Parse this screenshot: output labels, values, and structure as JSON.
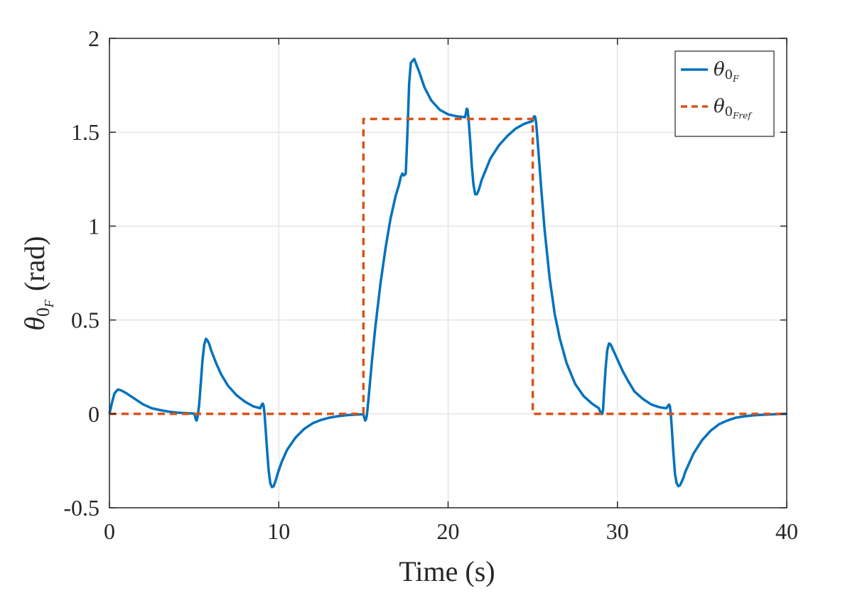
{
  "chart_data": {
    "type": "line",
    "xlabel": "Time (s)",
    "ylabel": {
      "symbol": "θ",
      "sub": "0",
      "subsub": "F",
      "unit": "(rad)"
    },
    "xlim": [
      0,
      40
    ],
    "ylim": [
      -0.5,
      2
    ],
    "xticks": [
      0,
      10,
      20,
      30,
      40
    ],
    "yticks": [
      -0.5,
      0,
      0.5,
      1,
      1.5,
      2
    ],
    "xtick_labels": [
      "0",
      "10",
      "20",
      "30",
      "40"
    ],
    "ytick_labels": [
      "-0.5",
      "0",
      "0.5",
      "1",
      "1.5",
      "2"
    ],
    "grid": true,
    "legend_position": "top-right",
    "legend": [
      {
        "symbol": "θ",
        "sub": "0",
        "subsub": "F"
      },
      {
        "symbol": "θ",
        "sub": "0",
        "subsub": "Fref"
      }
    ],
    "series": [
      {
        "color": "#0072BD",
        "style": "solid",
        "x": [
          0,
          0.15,
          0.3,
          0.5,
          0.7,
          1.0,
          1.5,
          2,
          2.5,
          3,
          3.5,
          4,
          4.5,
          5,
          5.05,
          5.1,
          5.15,
          5.2,
          5.3,
          5.4,
          5.5,
          5.6,
          5.7,
          5.8,
          5.9,
          6.0,
          6.3,
          6.6,
          7.0,
          7.5,
          8.0,
          8.5,
          8.9,
          9.0,
          9.05,
          9.1,
          9.15,
          9.2,
          9.3,
          9.4,
          9.5,
          9.6,
          9.7,
          9.8,
          9.9,
          10.0,
          10.2,
          10.5,
          11.0,
          11.5,
          12.0,
          12.5,
          13.0,
          13.5,
          14.0,
          14.5,
          15.0,
          15.05,
          15.1,
          15.15,
          15.2,
          15.3,
          15.5,
          15.7,
          16.0,
          16.3,
          16.6,
          16.9,
          17.0,
          17.1,
          17.2,
          17.3,
          17.4,
          17.5,
          17.6,
          17.7,
          17.8,
          18.0,
          18.3,
          18.6,
          19.0,
          19.5,
          20.0,
          20.5,
          21.0,
          21.05,
          21.1,
          21.15,
          21.2,
          21.3,
          21.4,
          21.5,
          21.6,
          21.7,
          21.8,
          21.9,
          22.0,
          22.5,
          23.0,
          23.5,
          24.0,
          24.5,
          25.0,
          25.05,
          25.1,
          25.15,
          25.2,
          25.3,
          25.5,
          25.7,
          26.0,
          26.3,
          26.6,
          27.0,
          27.5,
          28.0,
          28.5,
          28.9,
          29.0,
          29.05,
          29.1,
          29.15,
          29.2,
          29.3,
          29.4,
          29.5,
          29.6,
          29.7,
          29.8,
          29.9,
          30.0,
          30.3,
          30.6,
          31.0,
          31.5,
          32.0,
          32.5,
          32.9,
          33.0,
          33.05,
          33.1,
          33.15,
          33.2,
          33.3,
          33.4,
          33.5,
          33.6,
          33.7,
          33.8,
          33.9,
          34.0,
          34.2,
          34.5,
          35.0,
          35.5,
          36.0,
          36.5,
          37.0,
          37.5,
          38.0,
          38.5,
          39.0,
          39.5,
          40.0
        ],
        "y": [
          0,
          0.06,
          0.11,
          0.13,
          0.125,
          0.11,
          0.08,
          0.05,
          0.03,
          0.02,
          0.012,
          0.007,
          0.004,
          0.002,
          -0.01,
          -0.03,
          -0.035,
          -0.02,
          0.05,
          0.17,
          0.29,
          0.37,
          0.4,
          0.39,
          0.37,
          0.34,
          0.27,
          0.21,
          0.15,
          0.1,
          0.065,
          0.04,
          0.03,
          0.05,
          0.055,
          0.045,
          0.01,
          -0.05,
          -0.18,
          -0.3,
          -0.37,
          -0.39,
          -0.385,
          -0.36,
          -0.33,
          -0.3,
          -0.25,
          -0.19,
          -0.125,
          -0.08,
          -0.05,
          -0.032,
          -0.02,
          -0.012,
          -0.007,
          -0.004,
          -0.002,
          -0.02,
          -0.035,
          -0.03,
          -0.01,
          0.08,
          0.28,
          0.46,
          0.69,
          0.88,
          1.04,
          1.16,
          1.19,
          1.22,
          1.26,
          1.28,
          1.27,
          1.28,
          1.5,
          1.76,
          1.87,
          1.89,
          1.82,
          1.74,
          1.67,
          1.62,
          1.595,
          1.585,
          1.58,
          1.6,
          1.625,
          1.62,
          1.58,
          1.46,
          1.32,
          1.22,
          1.17,
          1.17,
          1.19,
          1.22,
          1.25,
          1.36,
          1.43,
          1.48,
          1.52,
          1.545,
          1.56,
          1.58,
          1.585,
          1.58,
          1.55,
          1.44,
          1.2,
          0.98,
          0.72,
          0.53,
          0.4,
          0.27,
          0.16,
          0.095,
          0.055,
          0.03,
          0.01,
          0.0,
          0.0,
          0.02,
          0.1,
          0.24,
          0.34,
          0.375,
          0.37,
          0.35,
          0.33,
          0.31,
          0.29,
          0.23,
          0.18,
          0.12,
          0.08,
          0.05,
          0.035,
          0.03,
          0.045,
          0.05,
          0.04,
          0.0,
          -0.06,
          -0.2,
          -0.32,
          -0.37,
          -0.385,
          -0.38,
          -0.36,
          -0.34,
          -0.31,
          -0.27,
          -0.21,
          -0.14,
          -0.09,
          -0.055,
          -0.035,
          -0.02,
          -0.013,
          -0.008,
          -0.005,
          -0.003,
          -0.001,
          0.0
        ]
      },
      {
        "color": "#D95319",
        "style": "dashed",
        "x": [
          0,
          15,
          15,
          25,
          25,
          40
        ],
        "y": [
          0,
          0,
          1.5708,
          1.5708,
          0,
          0
        ]
      }
    ]
  }
}
